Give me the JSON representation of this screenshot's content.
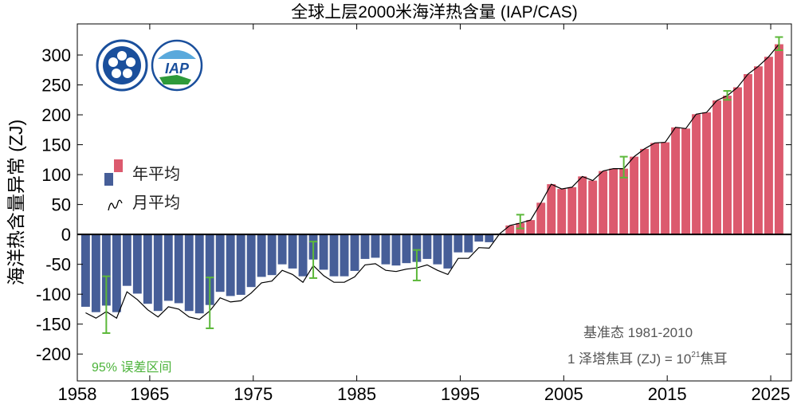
{
  "chart_data": {
    "type": "bar",
    "title": "全球上层2000米海洋热含量 (IAP/CAS)",
    "ylabel": "海洋热含量异常 (ZJ)",
    "xlabel": "",
    "xlim": [
      1958,
      2027
    ],
    "ylim": [
      -245,
      352
    ],
    "x_ticks": [
      1958,
      1965,
      1975,
      1985,
      1995,
      2005,
      2015,
      2025
    ],
    "y_ticks": [
      -200,
      -150,
      -100,
      -50,
      0,
      50,
      100,
      150,
      200,
      250,
      300
    ],
    "grid": false,
    "legend": {
      "placement": "left-middle",
      "entries": [
        {
          "label": "年平均",
          "icon": "bar-pair-icon"
        },
        {
          "label": "月平均",
          "icon": "wavy-line-icon"
        }
      ]
    },
    "colors": {
      "positive": "#dc5a6e",
      "negative": "#465e98",
      "line": "#000000",
      "error": "#5cb83a"
    },
    "annual": {
      "years": [
        1958,
        1959,
        1960,
        1961,
        1962,
        1963,
        1964,
        1965,
        1966,
        1967,
        1968,
        1969,
        1970,
        1971,
        1972,
        1973,
        1974,
        1975,
        1976,
        1977,
        1978,
        1979,
        1980,
        1981,
        1982,
        1983,
        1984,
        1985,
        1986,
        1987,
        1988,
        1989,
        1990,
        1991,
        1992,
        1993,
        1994,
        1995,
        1996,
        1997,
        1998,
        1999,
        2000,
        2001,
        2002,
        2003,
        2004,
        2005,
        2006,
        2007,
        2008,
        2009,
        2010,
        2011,
        2012,
        2013,
        2014,
        2015,
        2016,
        2017,
        2018,
        2019,
        2020,
        2021,
        2022,
        2023,
        2024,
        2025
      ],
      "values": [
        -121,
        -130,
        -119,
        -130,
        -86,
        -99,
        -116,
        -128,
        -111,
        -115,
        -128,
        -132,
        -118,
        -96,
        -103,
        -101,
        -88,
        -71,
        -68,
        -50,
        -57,
        -70,
        -42,
        -59,
        -70,
        -70,
        -61,
        -41,
        -39,
        -50,
        -52,
        -48,
        -46,
        -41,
        -50,
        -57,
        -30,
        -30,
        -12,
        -13,
        1,
        15,
        19,
        24,
        53,
        84,
        76,
        79,
        97,
        90,
        106,
        110,
        110,
        130,
        143,
        153,
        154,
        179,
        177,
        201,
        204,
        224,
        232,
        246,
        268,
        281,
        297,
        318
      ]
    },
    "monthly_series_label": "月平均",
    "error_bars": [
      {
        "year": 1960,
        "low": -165,
        "high": -70
      },
      {
        "year": 1970,
        "low": -157,
        "high": -72
      },
      {
        "year": 1980,
        "low": -73,
        "high": -12
      },
      {
        "year": 1990,
        "low": -77,
        "high": -26
      },
      {
        "year": 2000,
        "low": 10,
        "high": 33
      },
      {
        "year": 2010,
        "low": 95,
        "high": 130
      },
      {
        "year": 2020,
        "low": 225,
        "high": 240
      },
      {
        "year": 2025,
        "low": 308,
        "high": 330
      }
    ],
    "annotations": {
      "error_label": "95% 误差区间",
      "baseline": "基准态  1981-2010",
      "unit_prefix": "1 泽塔焦耳 (ZJ) = 10",
      "unit_exp": "21",
      "unit_suffix": "焦耳"
    },
    "logos": [
      "中国科学院",
      "IAP",
      "CAS"
    ]
  }
}
